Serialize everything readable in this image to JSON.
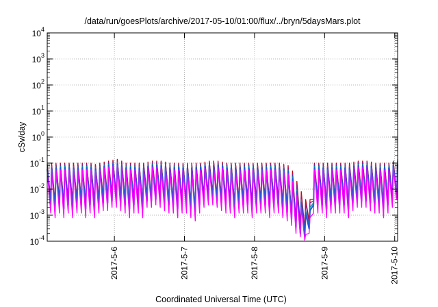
{
  "chart_data": {
    "type": "line",
    "title": "/data/run/goesPlots/archive/2017-05-10/01:00/flux/../bryn/5daysMars.plot",
    "xlabel": "Coordinated Universal Time (UTC)",
    "ylabel": "cSv/day",
    "y_scale": "log",
    "ylim": [
      0.0001,
      10000
    ],
    "y_ticks": [
      {
        "base": "10",
        "exp": "-4",
        "value": 0.0001
      },
      {
        "base": "10",
        "exp": "-3",
        "value": 0.001
      },
      {
        "base": "10",
        "exp": "-2",
        "value": 0.01
      },
      {
        "base": "10",
        "exp": "-1",
        "value": 0.1
      },
      {
        "base": "10",
        "exp": "0",
        "value": 1
      },
      {
        "base": "10",
        "exp": "1",
        "value": 10
      },
      {
        "base": "10",
        "exp": "2",
        "value": 100
      },
      {
        "base": "10",
        "exp": "3",
        "value": 1000
      },
      {
        "base": "10",
        "exp": "4",
        "value": 10000
      }
    ],
    "xlim": [
      "2017-05-05T01:00",
      "2017-05-10T01:00"
    ],
    "x_ticks": [
      {
        "label": "2017-5-6",
        "value": "2017-05-06T00:00"
      },
      {
        "label": "2017-5-7",
        "value": "2017-05-07T00:00"
      },
      {
        "label": "2017-5-8",
        "value": "2017-05-08T00:00"
      },
      {
        "label": "2017-5-9",
        "value": "2017-05-09T00:00"
      },
      {
        "label": "2017-5-10",
        "value": "2017-05-10T00:00"
      }
    ],
    "grid": true,
    "colors": [
      "#d00000",
      "#8a1a8a",
      "#0090a0",
      "#2255dd",
      "#ff00ff"
    ],
    "x": [
      "2017-05-05T01:00",
      "2017-05-05T02:30",
      "2017-05-05T04:00",
      "2017-05-05T05:30",
      "2017-05-05T07:00",
      "2017-05-05T08:30",
      "2017-05-05T10:00",
      "2017-05-05T11:30",
      "2017-05-05T13:00",
      "2017-05-05T14:30",
      "2017-05-05T16:00",
      "2017-05-05T17:30",
      "2017-05-05T19:00",
      "2017-05-05T20:30",
      "2017-05-05T22:00",
      "2017-05-05T23:30",
      "2017-05-06T01:00",
      "2017-05-06T02:30",
      "2017-05-06T04:00",
      "2017-05-06T05:30",
      "2017-05-06T07:00",
      "2017-05-06T08:30",
      "2017-05-06T10:00",
      "2017-05-06T11:30",
      "2017-05-06T13:00",
      "2017-05-06T14:30",
      "2017-05-06T16:00",
      "2017-05-06T17:30",
      "2017-05-06T19:00",
      "2017-05-06T20:30",
      "2017-05-06T22:00",
      "2017-05-06T23:30",
      "2017-05-07T01:00",
      "2017-05-07T02:30",
      "2017-05-07T04:00",
      "2017-05-07T05:30",
      "2017-05-07T07:00",
      "2017-05-07T08:30",
      "2017-05-07T10:00",
      "2017-05-07T11:30",
      "2017-05-07T13:00",
      "2017-05-07T14:30",
      "2017-05-07T16:00",
      "2017-05-07T17:30",
      "2017-05-07T19:00",
      "2017-05-07T20:30",
      "2017-05-07T22:00",
      "2017-05-07T23:30",
      "2017-05-08T01:00",
      "2017-05-08T02:30",
      "2017-05-08T04:00",
      "2017-05-08T05:30",
      "2017-05-08T07:00",
      "2017-05-08T08:30",
      "2017-05-08T10:00",
      "2017-05-08T11:30",
      "2017-05-08T13:00",
      "2017-05-08T14:30",
      "2017-05-08T16:00",
      "2017-05-08T17:30",
      "2017-05-08T19:00",
      "2017-05-08T20:30",
      "2017-05-08T22:00",
      "2017-05-08T23:30",
      "2017-05-09T01:00",
      "2017-05-09T02:30",
      "2017-05-09T04:00",
      "2017-05-09T05:30",
      "2017-05-09T07:00",
      "2017-05-09T08:30",
      "2017-05-09T10:00",
      "2017-05-09T11:30",
      "2017-05-09T13:00",
      "2017-05-09T14:30",
      "2017-05-09T16:00",
      "2017-05-09T17:30",
      "2017-05-09T19:00",
      "2017-05-09T20:30",
      "2017-05-09T22:00",
      "2017-05-09T23:30",
      "2017-05-10T01:00"
    ],
    "series": [
      {
        "values": [
          0.09,
          0.1,
          0.1,
          0.1,
          0.1,
          0.1,
          0.1,
          0.1,
          0.1,
          0.1,
          0.1,
          0.09,
          0.1,
          0.11,
          0.12,
          0.13,
          0.14,
          0.12,
          0.1,
          0.1,
          0.1,
          0.1,
          0.1,
          0.11,
          0.12,
          0.12,
          0.12,
          0.11,
          0.1,
          0.1,
          0.1,
          0.1,
          0.1,
          0.1,
          0.1,
          0.1,
          0.11,
          0.12,
          0.12,
          0.12,
          0.11,
          0.1,
          0.1,
          0.1,
          0.1,
          0.1,
          0.1,
          0.1,
          0.1,
          0.1,
          0.1,
          0.1,
          0.1,
          0.1,
          0.09,
          0.08,
          0.05,
          0.02,
          0.008,
          0.004,
          0.004,
          0.1,
          0.1,
          0.1,
          0.1,
          0.1,
          0.1,
          0.1,
          0.1,
          0.1,
          0.11,
          0.12,
          0.12,
          0.12,
          0.11,
          0.1,
          0.1,
          0.1,
          0.1,
          0.12,
          0.14
        ]
      },
      {
        "values": [
          0.085,
          0.09,
          0.09,
          0.09,
          0.09,
          0.09,
          0.09,
          0.09,
          0.09,
          0.09,
          0.09,
          0.085,
          0.09,
          0.1,
          0.11,
          0.12,
          0.13,
          0.11,
          0.09,
          0.09,
          0.09,
          0.09,
          0.09,
          0.1,
          0.11,
          0.11,
          0.11,
          0.1,
          0.09,
          0.09,
          0.09,
          0.09,
          0.09,
          0.09,
          0.09,
          0.09,
          0.1,
          0.11,
          0.11,
          0.11,
          0.1,
          0.09,
          0.09,
          0.09,
          0.09,
          0.09,
          0.09,
          0.09,
          0.09,
          0.09,
          0.09,
          0.09,
          0.09,
          0.09,
          0.085,
          0.07,
          0.04,
          0.015,
          0.006,
          0.003,
          0.003,
          0.09,
          0.09,
          0.09,
          0.09,
          0.09,
          0.09,
          0.09,
          0.09,
          0.09,
          0.1,
          0.11,
          0.11,
          0.11,
          0.1,
          0.09,
          0.09,
          0.09,
          0.09,
          0.11,
          0.12
        ]
      },
      {
        "values": [
          0.07,
          0.075,
          0.075,
          0.075,
          0.075,
          0.075,
          0.075,
          0.075,
          0.075,
          0.075,
          0.075,
          0.07,
          0.075,
          0.085,
          0.09,
          0.1,
          0.11,
          0.09,
          0.075,
          0.075,
          0.075,
          0.075,
          0.075,
          0.085,
          0.09,
          0.09,
          0.09,
          0.085,
          0.075,
          0.075,
          0.075,
          0.075,
          0.075,
          0.075,
          0.075,
          0.075,
          0.085,
          0.09,
          0.09,
          0.09,
          0.085,
          0.075,
          0.075,
          0.075,
          0.075,
          0.075,
          0.075,
          0.075,
          0.075,
          0.075,
          0.075,
          0.075,
          0.075,
          0.075,
          0.07,
          0.055,
          0.03,
          0.01,
          0.004,
          0.0015,
          0.002,
          0.075,
          0.075,
          0.075,
          0.075,
          0.075,
          0.075,
          0.075,
          0.075,
          0.075,
          0.085,
          0.09,
          0.09,
          0.09,
          0.085,
          0.075,
          0.075,
          0.075,
          0.075,
          0.09,
          0.1
        ]
      },
      {
        "values": [
          0.06,
          0.065,
          0.065,
          0.065,
          0.065,
          0.065,
          0.065,
          0.065,
          0.065,
          0.065,
          0.065,
          0.06,
          0.065,
          0.075,
          0.08,
          0.09,
          0.095,
          0.08,
          0.065,
          0.065,
          0.065,
          0.065,
          0.065,
          0.075,
          0.08,
          0.08,
          0.08,
          0.075,
          0.065,
          0.065,
          0.065,
          0.065,
          0.065,
          0.065,
          0.065,
          0.065,
          0.075,
          0.08,
          0.08,
          0.08,
          0.075,
          0.065,
          0.065,
          0.065,
          0.065,
          0.065,
          0.065,
          0.065,
          0.065,
          0.065,
          0.065,
          0.065,
          0.065,
          0.065,
          0.06,
          0.048,
          0.025,
          0.008,
          0.003,
          0.0012,
          0.0015,
          0.065,
          0.065,
          0.065,
          0.065,
          0.065,
          0.065,
          0.065,
          0.065,
          0.065,
          0.075,
          0.08,
          0.08,
          0.08,
          0.075,
          0.065,
          0.065,
          0.065,
          0.065,
          0.08,
          0.09
        ]
      },
      {
        "values": [
          0.05,
          0.055,
          0.055,
          0.055,
          0.055,
          0.055,
          0.055,
          0.055,
          0.055,
          0.055,
          0.055,
          0.05,
          0.055,
          0.065,
          0.07,
          0.075,
          0.08,
          0.07,
          0.055,
          0.055,
          0.055,
          0.055,
          0.055,
          0.065,
          0.07,
          0.07,
          0.07,
          0.065,
          0.055,
          0.055,
          0.055,
          0.055,
          0.055,
          0.055,
          0.055,
          0.055,
          0.065,
          0.07,
          0.07,
          0.07,
          0.065,
          0.055,
          0.055,
          0.055,
          0.055,
          0.055,
          0.055,
          0.055,
          0.055,
          0.055,
          0.055,
          0.055,
          0.055,
          0.055,
          0.05,
          0.04,
          0.02,
          0.006,
          0.002,
          0.00018,
          0.0008,
          0.055,
          0.055,
          0.055,
          0.055,
          0.055,
          0.055,
          0.055,
          0.055,
          0.055,
          0.065,
          0.07,
          0.07,
          0.07,
          0.065,
          0.055,
          0.055,
          0.055,
          0.055,
          0.07,
          0.075
        ]
      }
    ],
    "series_min": [
      [
        0.01,
        0.004,
        0.003,
        0.004,
        0.003,
        0.004,
        0.003,
        0.004,
        0.004,
        0.003,
        0.004,
        0.003,
        0.004,
        0.005,
        0.005,
        0.006,
        0.006,
        0.005,
        0.004,
        0.003,
        0.004,
        0.004,
        0.003,
        0.006,
        0.006,
        0.007,
        0.006,
        0.005,
        0.004,
        0.004,
        0.003,
        0.004,
        0.004,
        0.003,
        0.002,
        0.004,
        0.006,
        0.007,
        0.007,
        0.006,
        0.005,
        0.004,
        0.004,
        0.003,
        0.004,
        0.004,
        0.004,
        0.003,
        0.004,
        0.004,
        0.004,
        0.003,
        0.004,
        0.004,
        0.003,
        0.002,
        0.001,
        0.0006,
        0.0004,
        0.0003,
        0.0006,
        0.004,
        0.004,
        0.004,
        0.003,
        0.004,
        0.004,
        0.004,
        0.004,
        0.003,
        0.005,
        0.006,
        0.006,
        0.006,
        0.005,
        0.004,
        0.004,
        0.003,
        0.004,
        0.006,
        0.008
      ],
      [
        0.008,
        0.0035,
        0.0025,
        0.0035,
        0.0025,
        0.0035,
        0.0025,
        0.0035,
        0.0035,
        0.0025,
        0.0035,
        0.0025,
        0.0035,
        0.004,
        0.004,
        0.005,
        0.005,
        0.004,
        0.0035,
        0.0025,
        0.0035,
        0.0035,
        0.0025,
        0.005,
        0.005,
        0.006,
        0.005,
        0.004,
        0.0035,
        0.0035,
        0.0025,
        0.0035,
        0.0035,
        0.0025,
        0.0018,
        0.0035,
        0.005,
        0.006,
        0.006,
        0.005,
        0.004,
        0.0035,
        0.0035,
        0.0025,
        0.0035,
        0.0035,
        0.0035,
        0.0025,
        0.0035,
        0.0035,
        0.0035,
        0.0025,
        0.0035,
        0.0035,
        0.0025,
        0.0018,
        0.0009,
        0.0005,
        0.0003,
        0.00025,
        0.0005,
        0.0035,
        0.0035,
        0.0035,
        0.0025,
        0.0035,
        0.0035,
        0.0035,
        0.0035,
        0.0025,
        0.004,
        0.005,
        0.005,
        0.005,
        0.004,
        0.0035,
        0.0035,
        0.0025,
        0.0035,
        0.005,
        0.007
      ],
      [
        0.006,
        0.003,
        0.002,
        0.003,
        0.002,
        0.003,
        0.002,
        0.003,
        0.003,
        0.002,
        0.003,
        0.002,
        0.003,
        0.0035,
        0.0035,
        0.004,
        0.004,
        0.0035,
        0.003,
        0.002,
        0.003,
        0.003,
        0.002,
        0.004,
        0.004,
        0.005,
        0.004,
        0.0035,
        0.003,
        0.003,
        0.002,
        0.003,
        0.003,
        0.002,
        0.0016,
        0.003,
        0.004,
        0.005,
        0.005,
        0.004,
        0.0035,
        0.003,
        0.003,
        0.002,
        0.003,
        0.003,
        0.003,
        0.002,
        0.003,
        0.003,
        0.003,
        0.002,
        0.003,
        0.003,
        0.002,
        0.0015,
        0.0008,
        0.0004,
        0.00025,
        0.0002,
        0.0004,
        0.003,
        0.003,
        0.003,
        0.002,
        0.003,
        0.003,
        0.003,
        0.003,
        0.002,
        0.0035,
        0.004,
        0.004,
        0.004,
        0.0035,
        0.003,
        0.003,
        0.002,
        0.003,
        0.004,
        0.006
      ],
      [
        0.005,
        0.0025,
        0.0018,
        0.0025,
        0.0018,
        0.0025,
        0.0018,
        0.0025,
        0.0025,
        0.0018,
        0.0025,
        0.0018,
        0.0025,
        0.003,
        0.003,
        0.0035,
        0.0035,
        0.003,
        0.0025,
        0.0018,
        0.0025,
        0.0025,
        0.0018,
        0.0035,
        0.0035,
        0.004,
        0.0035,
        0.003,
        0.0025,
        0.0025,
        0.0018,
        0.0025,
        0.0025,
        0.0018,
        0.0014,
        0.0025,
        0.0035,
        0.004,
        0.004,
        0.0035,
        0.003,
        0.0025,
        0.0025,
        0.0018,
        0.0025,
        0.0025,
        0.0025,
        0.0018,
        0.0025,
        0.0025,
        0.0025,
        0.0018,
        0.0025,
        0.0025,
        0.0018,
        0.0013,
        0.0007,
        0.00035,
        0.0002,
        0.00015,
        0.0003,
        0.0025,
        0.0025,
        0.0025,
        0.0018,
        0.0025,
        0.0025,
        0.0025,
        0.0025,
        0.0018,
        0.003,
        0.0035,
        0.0035,
        0.0035,
        0.003,
        0.0025,
        0.0025,
        0.0018,
        0.0025,
        0.0035,
        0.005
      ],
      [
        0.004,
        0.0012,
        0.0008,
        0.0012,
        0.0008,
        0.0012,
        0.0008,
        0.0012,
        0.0012,
        0.0008,
        0.0012,
        0.0008,
        0.0012,
        0.0015,
        0.0015,
        0.002,
        0.002,
        0.0015,
        0.0012,
        0.0008,
        0.0012,
        0.0012,
        0.0008,
        0.002,
        0.002,
        0.0025,
        0.002,
        0.0015,
        0.0012,
        0.0012,
        0.0008,
        0.0012,
        0.0012,
        0.0008,
        0.0006,
        0.0012,
        0.002,
        0.0025,
        0.0025,
        0.002,
        0.0015,
        0.0012,
        0.0012,
        0.0008,
        0.0012,
        0.0012,
        0.0012,
        0.0008,
        0.0012,
        0.0012,
        0.0012,
        0.0008,
        0.0012,
        0.0012,
        0.0008,
        0.0006,
        0.0004,
        0.0002,
        0.00015,
        0.00011,
        0.0002,
        0.0012,
        0.0012,
        0.0012,
        0.0008,
        0.0012,
        0.0012,
        0.0012,
        0.0012,
        0.0008,
        0.0015,
        0.002,
        0.002,
        0.002,
        0.0015,
        0.0012,
        0.0012,
        0.0008,
        0.0012,
        0.002,
        0.004
      ]
    ]
  }
}
